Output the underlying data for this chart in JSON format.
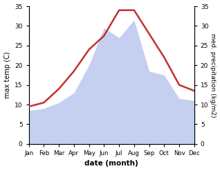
{
  "months": [
    "Jan",
    "Feb",
    "Mar",
    "Apr",
    "May",
    "Jun",
    "Jul",
    "Aug",
    "Sep",
    "Oct",
    "Nov",
    "Dec"
  ],
  "temperature": [
    9.5,
    10.5,
    14.0,
    18.5,
    24.0,
    27.5,
    34.0,
    34.0,
    28.0,
    22.0,
    15.0,
    13.5
  ],
  "precipitation": [
    8.5,
    9.0,
    10.5,
    13.0,
    20.0,
    29.5,
    27.0,
    31.5,
    18.5,
    17.5,
    11.5,
    11.0
  ],
  "temp_color": "#c03030",
  "precip_color": "#c5cff0",
  "ylabel_left": "max temp (C)",
  "ylabel_right": "med. precipitation (kg/m2)",
  "xlabel": "date (month)",
  "ylim": [
    0,
    35
  ],
  "yticks": [
    0,
    5,
    10,
    15,
    20,
    25,
    30,
    35
  ],
  "background_color": "#ffffff"
}
